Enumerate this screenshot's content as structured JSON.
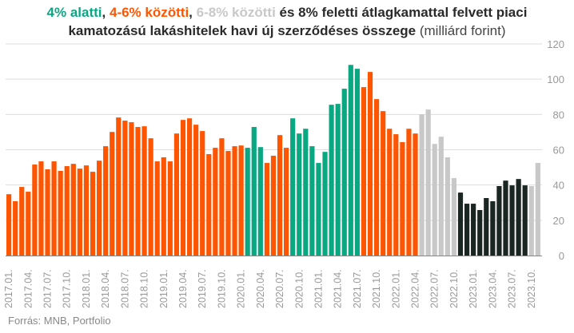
{
  "title": {
    "part1": "4% alatti",
    "sep1": ", ",
    "part2": "4-6% közötti",
    "sep2": ", ",
    "part3": "6-8% közötti",
    "part4": " és 8% feletti átlagkamattal felvett piaci",
    "line2": "kamatozású lakáshitelek havi új szerződéses összege",
    "unit": " (milliárd forint)"
  },
  "source": "Forrás: MNB, Portfolio",
  "colors": {
    "t": "#0aa882",
    "o": "#ff5500",
    "g": "#c8c8c8",
    "k": "#1b2622"
  },
  "chart_data": {
    "type": "bar",
    "ylim": [
      0,
      120
    ],
    "yticks": [
      0,
      20,
      40,
      60,
      80,
      100,
      120
    ],
    "grid": true,
    "x_label_every": 3,
    "legend": "in title, color-coded",
    "categories": [
      "2017.01.",
      "2017.02.",
      "2017.03.",
      "2017.04.",
      "2017.05.",
      "2017.06.",
      "2017.07.",
      "2017.08.",
      "2017.09.",
      "2017.10.",
      "2017.11.",
      "2017.12.",
      "2018.01.",
      "2018.02.",
      "2018.03.",
      "2018.04.",
      "2018.05.",
      "2018.06.",
      "2018.07.",
      "2018.08.",
      "2018.09.",
      "2018.10.",
      "2018.11.",
      "2018.12.",
      "2019.01.",
      "2019.02.",
      "2019.03.",
      "2019.04.",
      "2019.05.",
      "2019.06.",
      "2019.07.",
      "2019.08.",
      "2019.09.",
      "2019.10.",
      "2019.11.",
      "2019.12.",
      "2020.01.",
      "2020.02.",
      "2020.03.",
      "2020.04.",
      "2020.05.",
      "2020.06.",
      "2020.07.",
      "2020.08.",
      "2020.09.",
      "2020.10.",
      "2020.11.",
      "2020.12.",
      "2021.01.",
      "2021.02.",
      "2021.03.",
      "2021.04.",
      "2021.05.",
      "2021.06.",
      "2021.07.",
      "2021.08.",
      "2021.09.",
      "2021.10.",
      "2021.11.",
      "2021.12.",
      "2022.01.",
      "2022.02.",
      "2022.03.",
      "2022.04.",
      "2022.05.",
      "2022.06.",
      "2022.07.",
      "2022.08.",
      "2022.09.",
      "2022.10.",
      "2022.11.",
      "2022.12.",
      "2023.01.",
      "2023.02.",
      "2023.03.",
      "2023.04.",
      "2023.05.",
      "2023.06.",
      "2023.07.",
      "2023.08.",
      "2023.09.",
      "2023.10.",
      "2023.11."
    ],
    "values": [
      34.8,
      30.8,
      38.9,
      36.2,
      51.6,
      53.4,
      48.9,
      53.4,
      48.0,
      50.7,
      52.0,
      49.3,
      51.1,
      47.5,
      53.8,
      62.0,
      70.1,
      78.3,
      76.5,
      75.6,
      72.9,
      73.3,
      66.5,
      53.4,
      55.7,
      53.4,
      69.2,
      76.9,
      77.8,
      74.2,
      70.6,
      57.5,
      61.1,
      66.5,
      59.3,
      62.0,
      62.4,
      61.1,
      72.9,
      61.5,
      52.5,
      56.6,
      68.3,
      61.1,
      77.8,
      69.2,
      71.9,
      62.0,
      52.5,
      58.8,
      85.5,
      86.0,
      94.6,
      108.1,
      105.9,
      95.5,
      104.1,
      88.7,
      81.9,
      71.9,
      68.8,
      64.3,
      71.9,
      69.2,
      80.1,
      82.8,
      63.3,
      67.4,
      55.7,
      43.9,
      35.7,
      29.4,
      29.4,
      25.8,
      32.6,
      30.8,
      39.4,
      42.5,
      39.8,
      43.4,
      39.8,
      39.4,
      52.5
    ],
    "rate_band": [
      "o",
      "o",
      "o",
      "o",
      "o",
      "o",
      "o",
      "o",
      "o",
      "o",
      "o",
      "o",
      "o",
      "o",
      "o",
      "o",
      "o",
      "o",
      "o",
      "o",
      "o",
      "o",
      "o",
      "o",
      "o",
      "o",
      "o",
      "o",
      "o",
      "o",
      "o",
      "o",
      "o",
      "o",
      "o",
      "o",
      "o",
      "t",
      "t",
      "t",
      "o",
      "o",
      "o",
      "o",
      "t",
      "t",
      "t",
      "t",
      "t",
      "t",
      "t",
      "t",
      "t",
      "t",
      "t",
      "o",
      "o",
      "o",
      "o",
      "o",
      "o",
      "o",
      "o",
      "o",
      "g",
      "g",
      "g",
      "g",
      "g",
      "g",
      "k",
      "k",
      "k",
      "k",
      "k",
      "k",
      "k",
      "k",
      "k",
      "k",
      "k",
      "g",
      "g"
    ],
    "band_names": {
      "t": "4% alatti",
      "o": "4-6% közötti",
      "g": "6-8% közötti",
      "k": "8% feletti"
    }
  }
}
